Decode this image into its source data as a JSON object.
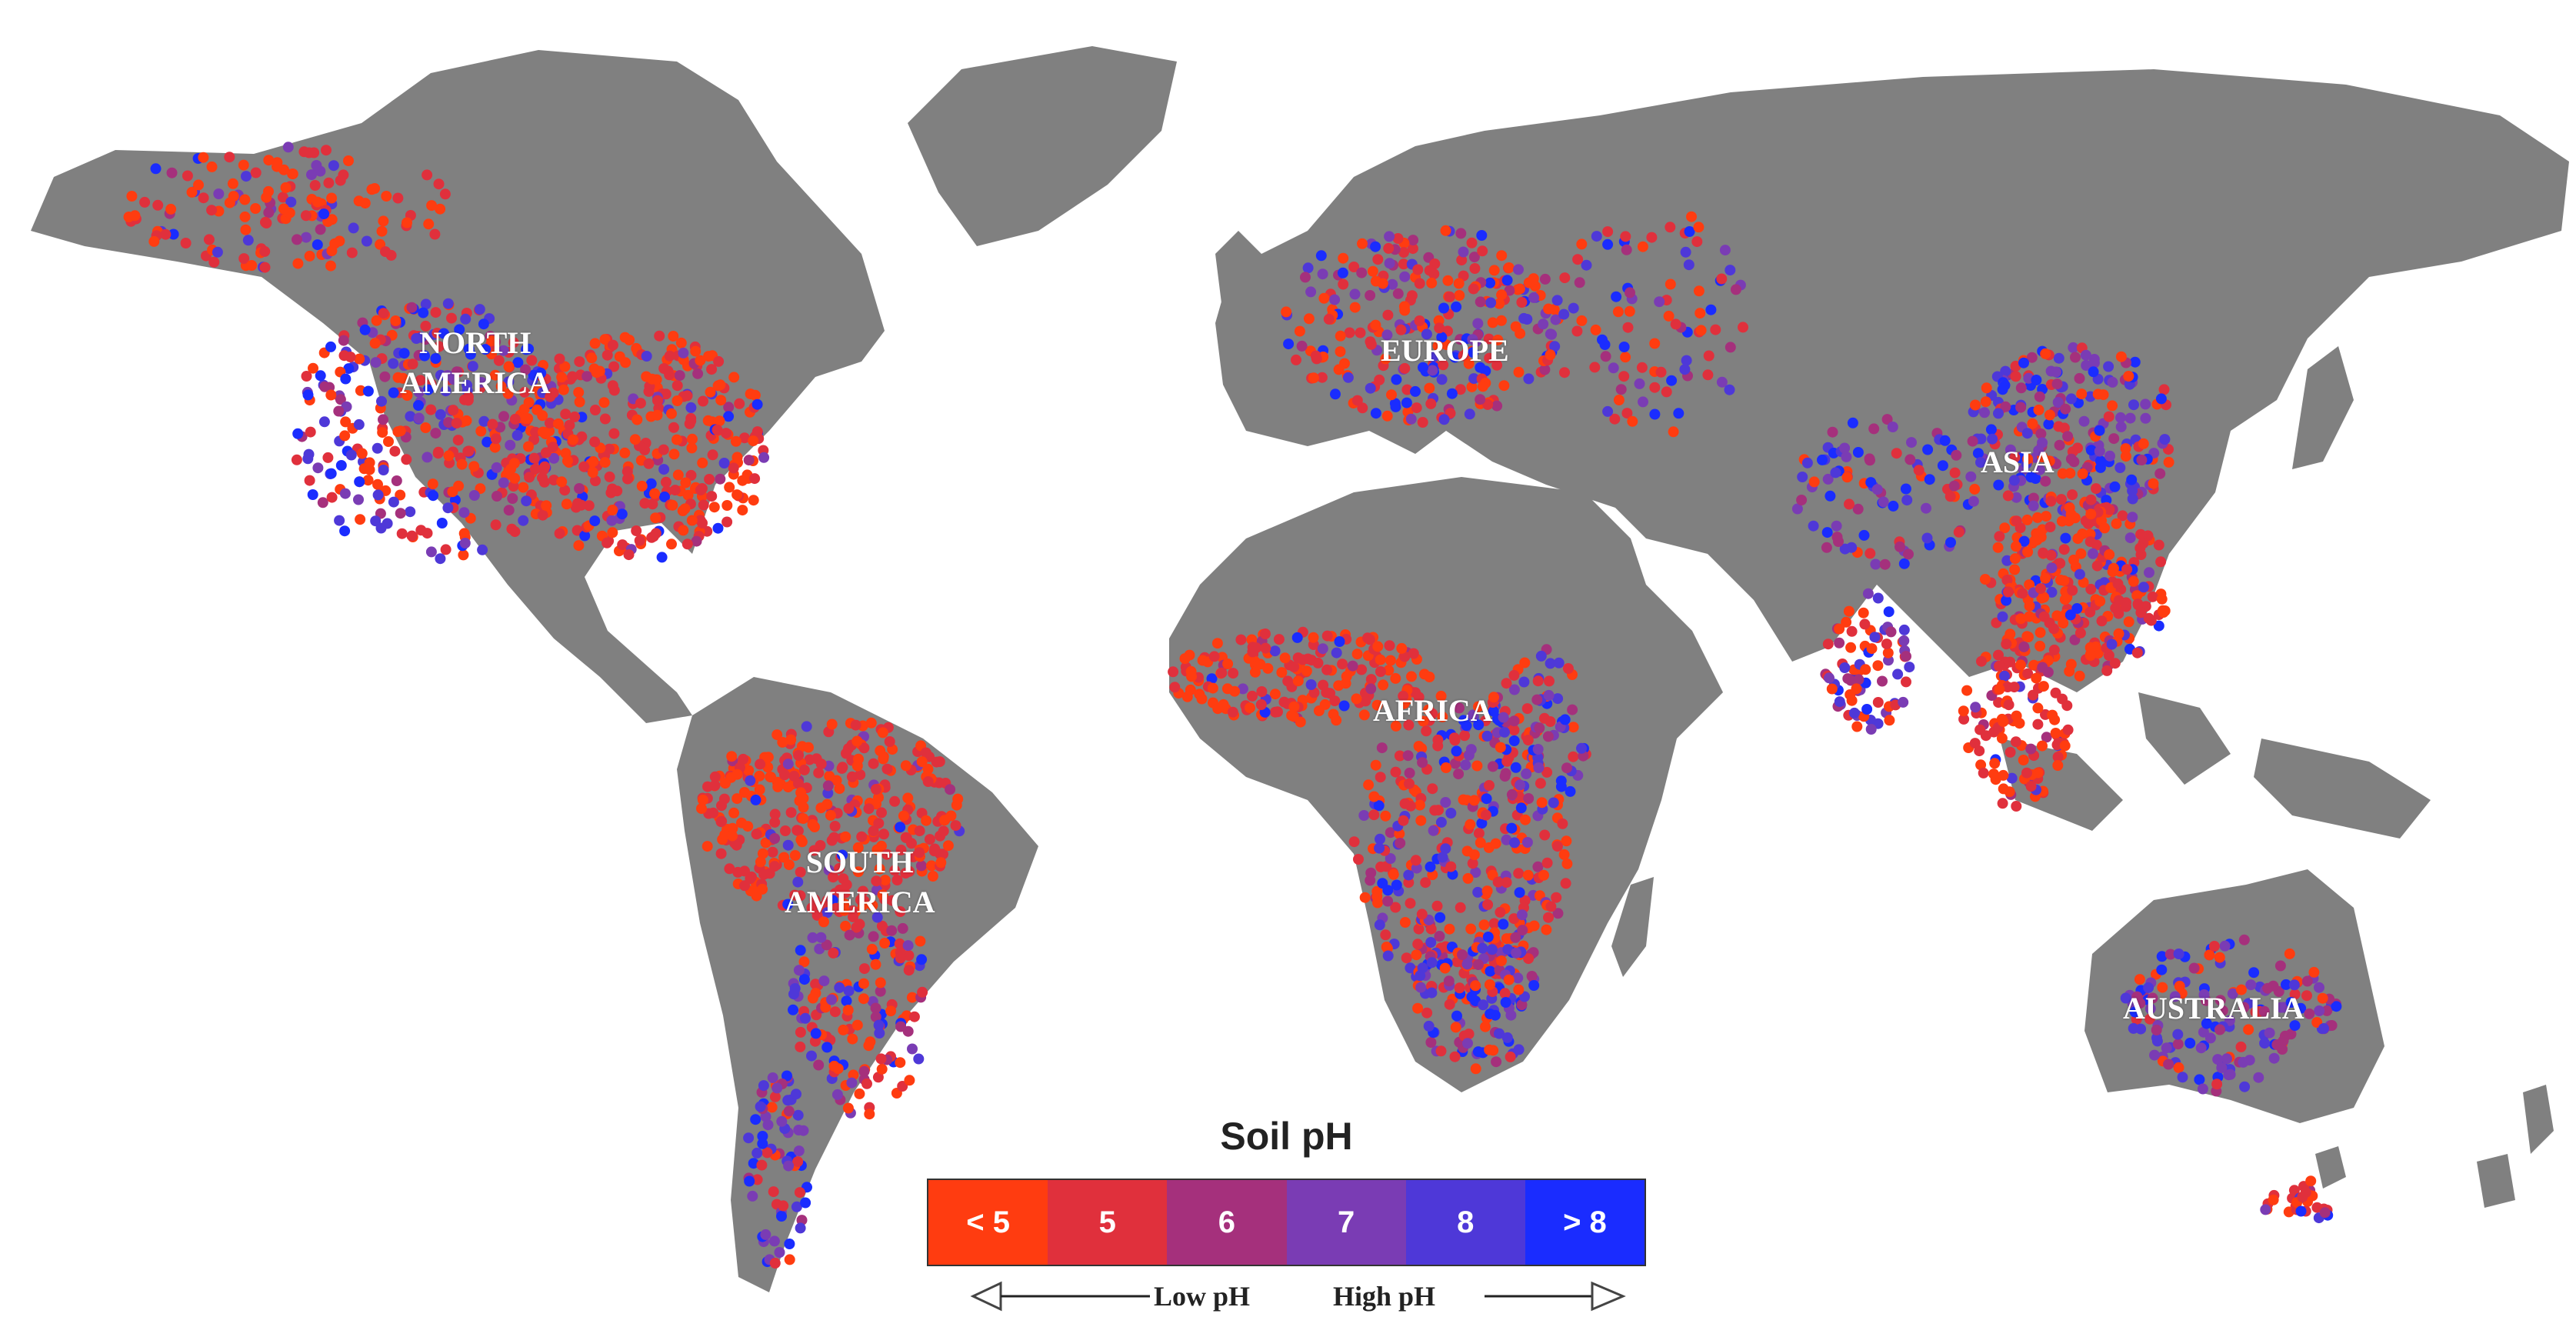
{
  "regions": {
    "north_america": [
      "NORTH",
      "AMERICA"
    ],
    "south_america": [
      "SOUTH",
      "AMERICA"
    ],
    "europe": [
      "EUROPE"
    ],
    "africa": [
      "AFRICA"
    ],
    "asia": [
      "ASIA"
    ],
    "australia": [
      "AUSTRALIA"
    ]
  },
  "legend": {
    "title": "Soil pH",
    "classes": [
      {
        "label": "< 5",
        "color": "#ff3c10"
      },
      {
        "label": "5",
        "color": "#e0303c"
      },
      {
        "label": "6",
        "color": "#a5307c"
      },
      {
        "label": "7",
        "color": "#7a3cb4"
      },
      {
        "label": "8",
        "color": "#4e38d8"
      },
      {
        "label": "> 8",
        "color": "#1a2cff"
      }
    ],
    "low_label": "Low pH",
    "high_label": "High pH"
  },
  "colors": {
    "land": "#808080",
    "ocean": "#ffffff"
  }
}
